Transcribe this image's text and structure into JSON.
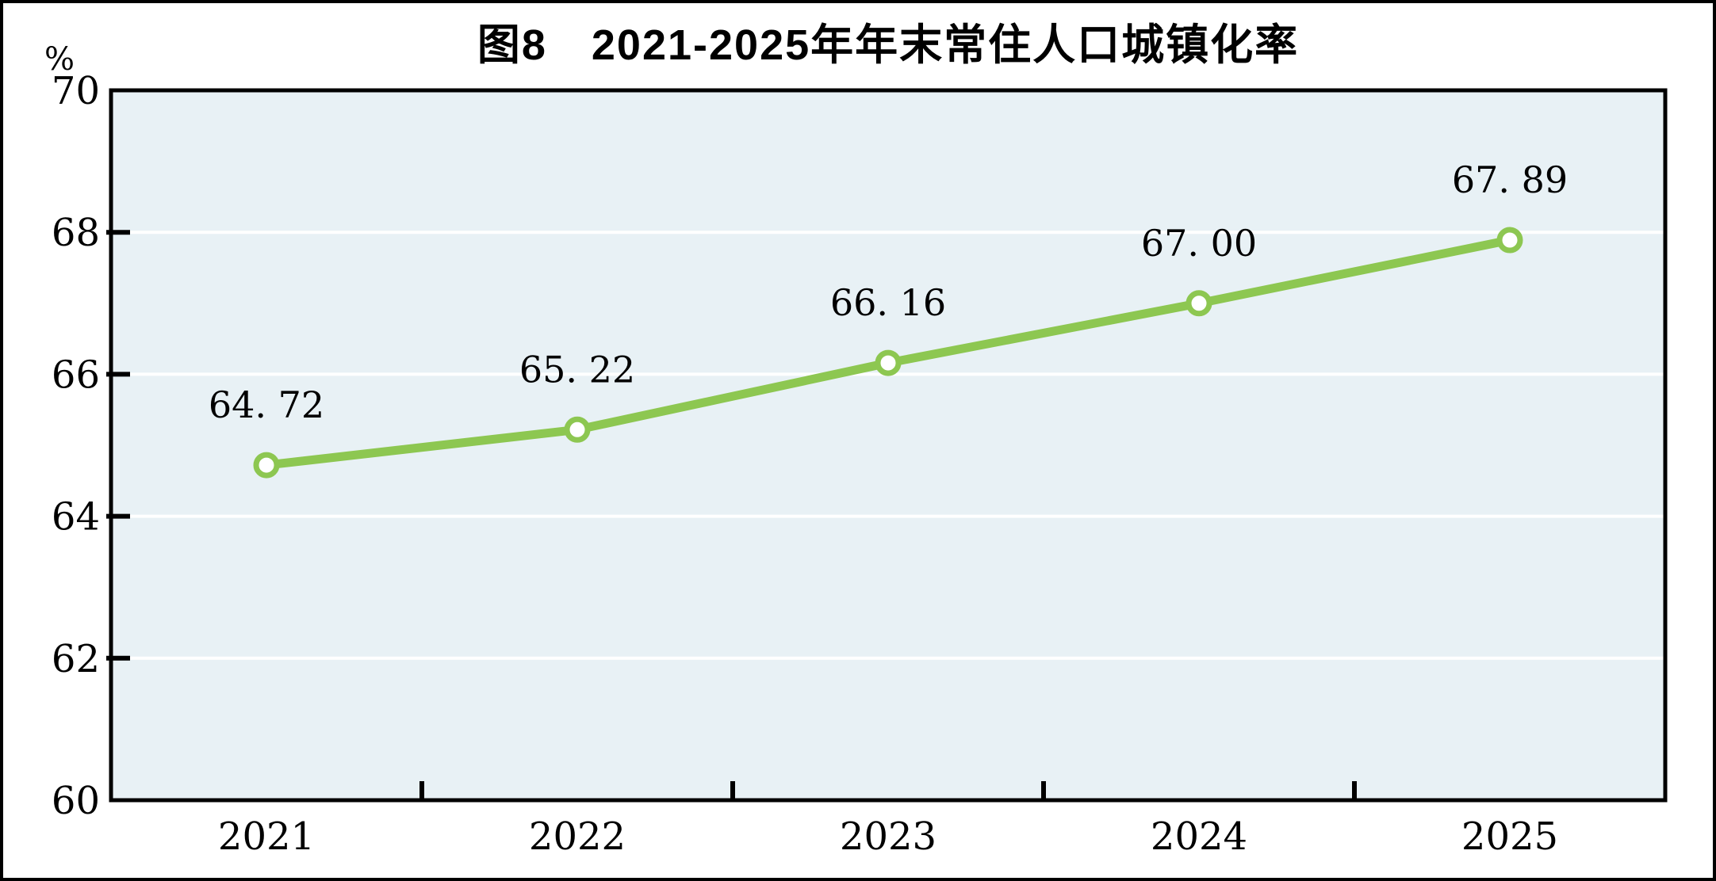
{
  "figure": {
    "title": "图8　2021-2025年年末常住人口城镇化率",
    "unit_label": "%"
  },
  "chart_data": {
    "type": "line",
    "title": "图8　2021-2025年年末常住人口城镇化率",
    "xlabel": "",
    "ylabel": "%",
    "categories": [
      "2021",
      "2022",
      "2023",
      "2024",
      "2025"
    ],
    "series": [
      {
        "name": "年末常住人口城镇化率",
        "values": [
          64.72,
          65.22,
          66.16,
          67.0,
          67.89
        ]
      }
    ],
    "point_labels": [
      "64. 72",
      "65. 22",
      "66. 16",
      "67. 00",
      "67. 89"
    ],
    "ylim": [
      60,
      70
    ],
    "yticks": [
      60,
      62,
      64,
      66,
      68,
      70
    ],
    "grid": true,
    "legend_position": "none",
    "colors": {
      "line": "#8dc751",
      "marker_fill": "#ffffff",
      "marker_stroke": "#8dc751",
      "plot_background": "#e8f1f5",
      "gridline": "#ffffff",
      "axis": "#000000",
      "text": "#000000",
      "frame": "#000000"
    }
  }
}
